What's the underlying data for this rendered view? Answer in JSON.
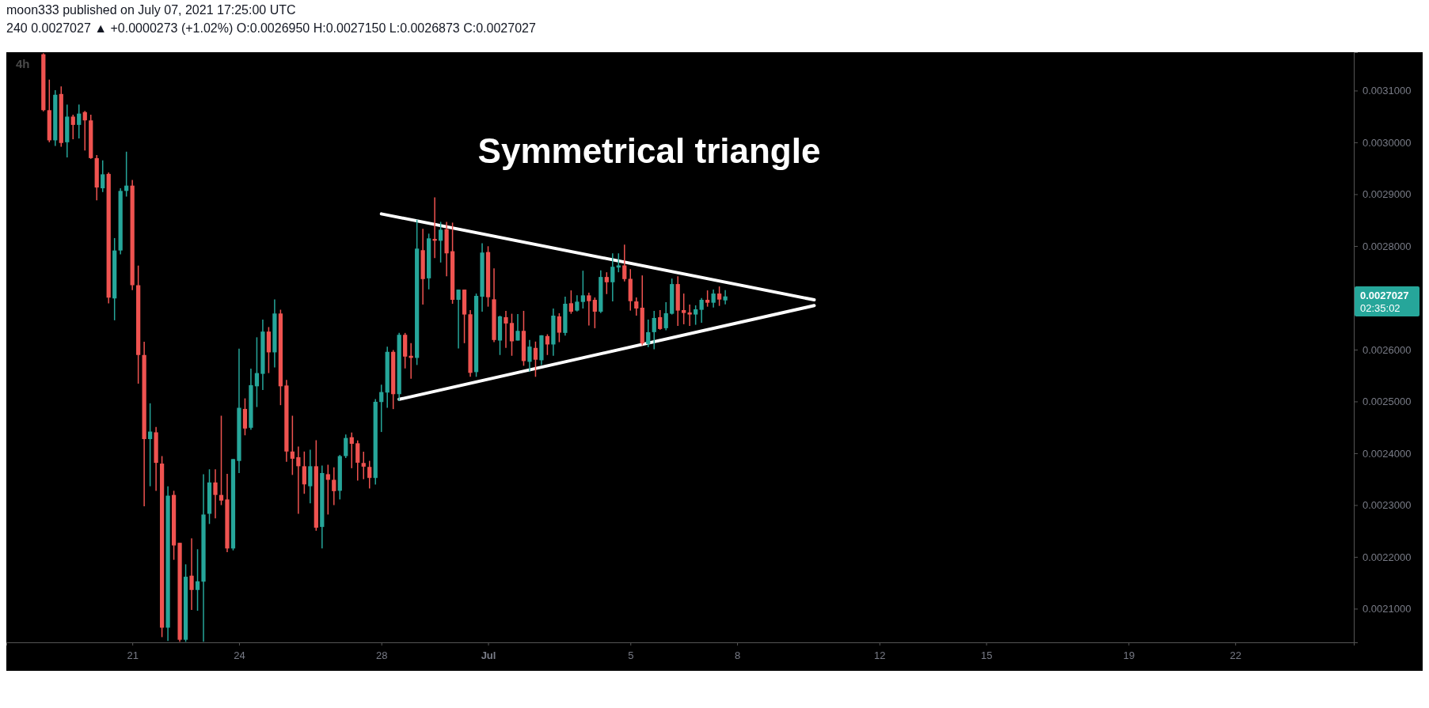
{
  "chart_data": {
    "type": "candlestick",
    "title": "Symmetrical triangle",
    "subtitle": "4h",
    "annotations": [
      "moon333 published on July 07, 2021 17:25:00 UTC",
      "240 0.0027027 ▲ +0.0000273 (+1.02%) O:0.0026950 H:0.0027150 L:0.0026873 C:0.0027027",
      "0.0027027",
      "02:35:02"
    ],
    "x": [
      "2021-06-18T12:00",
      "2021-06-18T16:00",
      "2021-06-18T20:00",
      "2021-06-19T00:00",
      "2021-06-19T04:00",
      "2021-06-19T08:00",
      "2021-06-19T12:00",
      "2021-06-19T16:00",
      "2021-06-19T20:00",
      "2021-06-20T00:00",
      "2021-06-20T04:00",
      "2021-06-20T08:00",
      "2021-06-20T12:00",
      "2021-06-20T16:00",
      "2021-06-20T20:00",
      "2021-06-21T00:00",
      "2021-06-21T04:00",
      "2021-06-21T08:00",
      "2021-06-21T12:00",
      "2021-06-21T16:00",
      "2021-06-21T20:00",
      "2021-06-22T00:00",
      "2021-06-22T04:00",
      "2021-06-22T08:00",
      "2021-06-22T12:00",
      "2021-06-22T16:00",
      "2021-06-22T20:00",
      "2021-06-23T00:00",
      "2021-06-23T04:00",
      "2021-06-23T08:00",
      "2021-06-23T12:00",
      "2021-06-23T16:00",
      "2021-06-23T20:00",
      "2021-06-24T00:00",
      "2021-06-24T04:00",
      "2021-06-24T08:00",
      "2021-06-24T12:00",
      "2021-06-24T16:00",
      "2021-06-24T20:00",
      "2021-06-25T00:00",
      "2021-06-25T04:00",
      "2021-06-25T08:00",
      "2021-06-25T12:00",
      "2021-06-25T16:00",
      "2021-06-25T20:00",
      "2021-06-26T00:00",
      "2021-06-26T04:00",
      "2021-06-26T08:00",
      "2021-06-26T12:00",
      "2021-06-26T16:00",
      "2021-06-26T20:00",
      "2021-06-27T00:00",
      "2021-06-27T04:00",
      "2021-06-27T08:00",
      "2021-06-27T12:00",
      "2021-06-27T16:00",
      "2021-06-27T20:00",
      "2021-06-28T00:00",
      "2021-06-28T04:00",
      "2021-06-28T08:00",
      "2021-06-28T12:00",
      "2021-06-28T16:00",
      "2021-06-28T20:00",
      "2021-06-29T00:00",
      "2021-06-29T04:00",
      "2021-06-29T08:00",
      "2021-06-29T12:00",
      "2021-06-29T16:00",
      "2021-06-29T20:00",
      "2021-06-30T00:00",
      "2021-06-30T04:00",
      "2021-06-30T08:00",
      "2021-06-30T12:00",
      "2021-06-30T16:00",
      "2021-06-30T20:00",
      "2021-07-01T00:00",
      "2021-07-01T04:00",
      "2021-07-01T08:00",
      "2021-07-01T12:00",
      "2021-07-01T16:00",
      "2021-07-01T20:00",
      "2021-07-02T00:00",
      "2021-07-02T04:00",
      "2021-07-02T08:00",
      "2021-07-02T12:00",
      "2021-07-02T16:00",
      "2021-07-02T20:00",
      "2021-07-03T00:00",
      "2021-07-03T04:00",
      "2021-07-03T08:00",
      "2021-07-03T12:00",
      "2021-07-03T16:00",
      "2021-07-03T20:00",
      "2021-07-04T00:00",
      "2021-07-04T04:00",
      "2021-07-04T08:00",
      "2021-07-04T12:00",
      "2021-07-04T16:00",
      "2021-07-04T20:00",
      "2021-07-05T00:00",
      "2021-07-05T04:00",
      "2021-07-05T08:00",
      "2021-07-05T12:00",
      "2021-07-05T16:00",
      "2021-07-05T20:00",
      "2021-07-06T00:00",
      "2021-07-06T04:00",
      "2021-07-06T08:00",
      "2021-07-06T12:00",
      "2021-07-06T16:00",
      "2021-07-06T20:00",
      "2021-07-07T00:00",
      "2021-07-07T04:00",
      "2021-07-07T08:00",
      "2021-07-07T12:00",
      "2021-07-07T16:00"
    ],
    "ohlc": [
      [
        0.00317,
        0.003172,
        0.0030599,
        0.0030621
      ],
      [
        0.0030621,
        0.0031211,
        0.0030002,
        0.0030039
      ],
      [
        0.0030039,
        0.0031007,
        0.0029929,
        0.0030919
      ],
      [
        0.0030934,
        0.003108,
        0.0029915,
        0.0029988
      ],
      [
        0.0030002,
        0.003073,
        0.0029711,
        0.0030497
      ],
      [
        0.0030497,
        0.0030534,
        0.003006,
        0.0030337
      ],
      [
        0.0030337,
        0.003073,
        0.0030075,
        0.0030555
      ],
      [
        0.0030585,
        0.0030606,
        0.0029842,
        0.0030424
      ],
      [
        0.0030424,
        0.0030534,
        0.0029682,
        0.0029696
      ],
      [
        0.0029696,
        0.0029755,
        0.0028881,
        0.0029129
      ],
      [
        0.0029114,
        0.0029653,
        0.0029041,
        0.0029383
      ],
      [
        0.0029391,
        0.002942,
        0.0026894,
        0.0027003
      ],
      [
        0.0026988,
        0.0028153,
        0.0026566,
        0.0027913
      ],
      [
        0.0027913,
        0.0029114,
        0.002784,
        0.0029063
      ],
      [
        0.0029063,
        0.002982,
        0.0028954,
        0.0029165
      ],
      [
        0.0029165,
        0.0029274,
        0.0027148,
        0.0027243
      ],
      [
        0.0027243,
        0.0027622,
        0.0025343,
        0.0025896
      ],
      [
        0.0025896,
        0.0026151,
        0.0022977,
        0.0024273
      ],
      [
        0.0024273,
        0.0024964,
        0.0023363,
        0.0024418
      ],
      [
        0.0024404,
        0.0024506,
        0.0023275,
        0.0023814
      ],
      [
        0.00238,
        0.0023945,
        0.0020451,
        0.0020633
      ],
      [
        0.0020633,
        0.0023363,
        0.0020378,
        0.0023181
      ],
      [
        0.0023195,
        0.0023275,
        0.0021943,
        0.002222
      ],
      [
        0.0022271,
        0.0022271,
        0.002036,
        0.00204
      ],
      [
        0.00204,
        0.0021856,
        0.002036,
        0.0021616
      ],
      [
        0.0021637,
        0.0022358,
        0.0020975,
        0.0021361
      ],
      [
        0.0021361,
        0.0022147,
        0.002096,
        0.0021528
      ],
      [
        0.0021521,
        0.0023596,
        0.002036,
        0.0022817
      ],
      [
        0.0022831,
        0.002369,
        0.0022635,
        0.0023436
      ],
      [
        0.0023436,
        0.002369,
        0.0022744,
        0.0023195
      ],
      [
        0.0023195,
        0.0024724,
        0.0022999,
        0.0023086
      ],
      [
        0.0023108,
        0.0023603,
        0.0022089,
        0.0022162
      ],
      [
        0.0022162,
        0.0023887,
        0.0022125,
        0.0023887
      ],
      [
        0.0023851,
        0.002602,
        0.0023617,
        0.0024877
      ],
      [
        0.0024855,
        0.0025059,
        0.0024346,
        0.0024477
      ],
      [
        0.0024491,
        0.0025634,
        0.0024455,
        0.0025314
      ],
      [
        0.0025292,
        0.0026238,
        0.0024892,
        0.0025547
      ],
      [
        0.0025532,
        0.0026581,
        0.0025219,
        0.0026348
      ],
      [
        0.0026348,
        0.0026435,
        0.0025547,
        0.0025947
      ],
      [
        0.0025947,
        0.0026967,
        0.0025656,
        0.0026697
      ],
      [
        0.0026697,
        0.002677,
        0.0024928,
        0.0025292
      ],
      [
        0.0025307,
        0.0025416,
        0.0023836,
        0.0024033
      ],
      [
        0.0024033,
        0.0024724,
        0.0023581,
        0.0023894
      ],
      [
        0.0023923,
        0.0024127,
        0.0022831,
        0.0023749
      ],
      [
        0.0023749,
        0.0024033,
        0.0023217,
        0.0023399
      ],
      [
        0.0023363,
        0.0024069,
        0.0023035,
        0.0023749
      ],
      [
        0.0023749,
        0.0024251,
        0.0022504,
        0.0022562
      ],
      [
        0.0022577,
        0.0023763,
        0.0022162,
        0.0023618
      ],
      [
        0.0023596,
        0.0023778,
        0.0022817,
        0.0023487
      ],
      [
        0.0023487,
        0.0023727,
        0.0022999,
        0.0023268
      ],
      [
        0.0023275,
        0.0023967,
        0.0023108,
        0.0023945
      ],
      [
        0.0023945,
        0.002436,
        0.0023909,
        0.0024295
      ],
      [
        0.0024309,
        0.00244,
        0.0023711,
        0.0024182
      ],
      [
        0.0024192,
        0.0024248,
        0.0023472,
        0.0023817
      ],
      [
        0.0023812,
        0.002403,
        0.0023498,
        0.0023741
      ],
      [
        0.0023736,
        0.0023853,
        0.002332,
        0.0023523
      ],
      [
        0.0023523,
        0.0025044,
        0.0023396,
        0.0024993
      ],
      [
        0.0024988,
        0.0025323,
        0.002441,
        0.0025181
      ],
      [
        0.0025171,
        0.0026058,
        0.0024877,
        0.0025957
      ],
      [
        0.0025957,
        0.0025992,
        0.0024852,
        0.002514
      ],
      [
        0.002514,
        0.0026322,
        0.0025009,
        0.0026286
      ],
      [
        0.0026286,
        0.0026322,
        0.0025637,
        0.0025865
      ],
      [
        0.0025881,
        0.0026124,
        0.002544,
        0.002584
      ],
      [
        0.002584,
        0.0028507,
        0.0025703,
        0.0027949
      ],
      [
        0.0027919,
        0.002833,
        0.0026869,
        0.0027361
      ],
      [
        0.0027376,
        0.0028238,
        0.0027163,
        0.0028147
      ],
      [
        0.0028137,
        0.0028938,
        0.0027767,
        0.0028101
      ],
      [
        0.0028101,
        0.0028466,
        0.0027681,
        0.0028314
      ],
      [
        0.0028324,
        0.0028466,
        0.0027417,
        0.0027858
      ],
      [
        0.0027899,
        0.0028451,
        0.0026885,
        0.0026961
      ],
      [
        0.0026961,
        0.0027158,
        0.0026023,
        0.0027158
      ],
      [
        0.0027158,
        0.0027158,
        0.0026124,
        0.0026677
      ],
      [
        0.0026682,
        0.0026763,
        0.0025475,
        0.0025551
      ],
      [
        0.0025566,
        0.0027082,
        0.0025475,
        0.0027037
      ],
      [
        0.0027021,
        0.0028051,
        0.0026732,
        0.0027873
      ],
      [
        0.0027883,
        0.0027995,
        0.0026829,
        0.0027011
      ],
      [
        0.0026971,
        0.0027569,
        0.0026144,
        0.0026185
      ],
      [
        0.0026175,
        0.0026656,
        0.0025896,
        0.0026641
      ],
      [
        0.0026626,
        0.0026748,
        0.0026033,
        0.0026504
      ],
      [
        0.0026514,
        0.0026692,
        0.0025881,
        0.002616
      ],
      [
        0.0026175,
        0.0026687,
        0.0026175,
        0.0026362
      ],
      [
        0.0026362,
        0.0026748,
        0.0025688,
        0.0025779
      ],
      [
        0.0025764,
        0.0026185,
        0.0025577,
        0.0026058
      ],
      [
        0.0026033,
        0.0026155,
        0.0025475,
        0.0025805
      ],
      [
        0.0025794,
        0.0026276,
        0.0025703,
        0.0026276
      ],
      [
        0.0026261,
        0.0026296,
        0.0025896,
        0.0026099
      ],
      [
        0.0026099,
        0.0026793,
        0.0025881,
        0.0026656
      ],
      [
        0.0026641,
        0.0026702,
        0.0026144,
        0.0026327
      ],
      [
        0.0026322,
        0.0027021,
        0.0026271,
        0.0026885
      ],
      [
        0.0026895,
        0.0027143,
        0.0026692,
        0.0026732
      ],
      [
        0.0026753,
        0.0027047,
        0.0026737,
        0.0026925
      ],
      [
        0.002692,
        0.0027523,
        0.0026793,
        0.0027047
      ],
      [
        0.0027047,
        0.0027098,
        0.0026464,
        0.0026935
      ],
      [
        0.0026961,
        0.0027006,
        0.0026413,
        0.0026732
      ],
      [
        0.0026732,
        0.0027528,
        0.0026707,
        0.0027402
      ],
      [
        0.0027402,
        0.0027493,
        0.0027072,
        0.00273
      ],
      [
        0.00273,
        0.0027858,
        0.002693,
        0.0027599
      ],
      [
        0.0027584,
        0.0027858,
        0.0027493,
        0.0027625
      ],
      [
        0.0027625,
        0.0028025,
        0.0027316,
        0.0027361
      ],
      [
        0.0027366,
        0.0027554,
        0.0026753,
        0.0026935
      ],
      [
        0.002693,
        0.0027006,
        0.0026656,
        0.0026793
      ],
      [
        0.0026809,
        0.0027432,
        0.0026084,
        0.0026119
      ],
      [
        0.0026109,
        0.002658,
        0.0026048,
        0.0026337
      ],
      [
        0.0026337,
        0.0026748,
        0.0026007,
        0.0026611
      ],
      [
        0.0026626,
        0.0026763,
        0.0026383,
        0.0026398
      ],
      [
        0.0026413,
        0.0026915,
        0.0026373,
        0.0026702
      ],
      [
        0.0026692,
        0.0027371,
        0.0026677,
        0.0027265
      ],
      [
        0.0027265,
        0.0027417,
        0.0026459,
        0.0026753
      ],
      [
        0.0026763,
        0.0027082,
        0.0026489,
        0.0026707
      ],
      [
        0.0026717,
        0.0026869,
        0.0026459,
        0.0026677
      ],
      [
        0.0026677,
        0.0026854,
        0.0026479,
        0.0026778
      ],
      [
        0.0026768,
        0.0026996,
        0.002652,
        0.0026961
      ],
      [
        0.0026961,
        0.0027143,
        0.0026829,
        0.0026905
      ],
      [
        0.0026905,
        0.0027158,
        0.0026814,
        0.0027082
      ],
      [
        0.0027082,
        0.0027219,
        0.0026844,
        0.0026966
      ],
      [
        0.002695,
        0.002715,
        0.0026873,
        0.0027027
      ]
    ],
    "series": [
      {
        "type": "line",
        "color": "#ffffff",
        "x": [
          "2021-06-28T00:00",
          "2021-07-10T04:00"
        ],
        "values": [
          0.002862,
          0.002696
        ]
      },
      {
        "type": "line",
        "color": "#ffffff",
        "x": [
          "2021-06-28T12:00",
          "2021-07-10T04:00"
        ],
        "values": [
          0.002504,
          0.002685
        ]
      }
    ],
    "xlim": [
      "2021-06-17T11:00",
      "2021-07-25T08:00"
    ],
    "xticks": [
      {
        "value": "2021-06-21",
        "label": "21"
      },
      {
        "value": "2021-06-24",
        "label": "24"
      },
      {
        "value": "2021-06-28",
        "label": "28"
      },
      {
        "value": "2021-07-01",
        "label": "Jul"
      },
      {
        "value": "2021-07-05",
        "label": "5"
      },
      {
        "value": "2021-07-08",
        "label": "8"
      },
      {
        "value": "2021-07-12",
        "label": "12"
      },
      {
        "value": "2021-07-15",
        "label": "15"
      },
      {
        "value": "2021-07-19",
        "label": "19"
      },
      {
        "value": "2021-07-22",
        "label": "22"
      }
    ],
    "ylim": [
      0.002035,
      0.003174
    ],
    "yticks": [
      {
        "value": 0.0021,
        "label": "0.0021000"
      },
      {
        "value": 0.0022,
        "label": "0.0022000"
      },
      {
        "value": 0.0023,
        "label": "0.0023000"
      },
      {
        "value": 0.0024,
        "label": "0.0024000"
      },
      {
        "value": 0.0025,
        "label": "0.0025000"
      },
      {
        "value": 0.0026,
        "label": "0.0026000"
      },
      {
        "value": 0.0028,
        "label": "0.0028000"
      },
      {
        "value": 0.0029,
        "label": "0.0029000"
      },
      {
        "value": 0.003,
        "label": "0.0030000"
      },
      {
        "value": 0.0031,
        "label": "0.0031000"
      }
    ]
  }
}
